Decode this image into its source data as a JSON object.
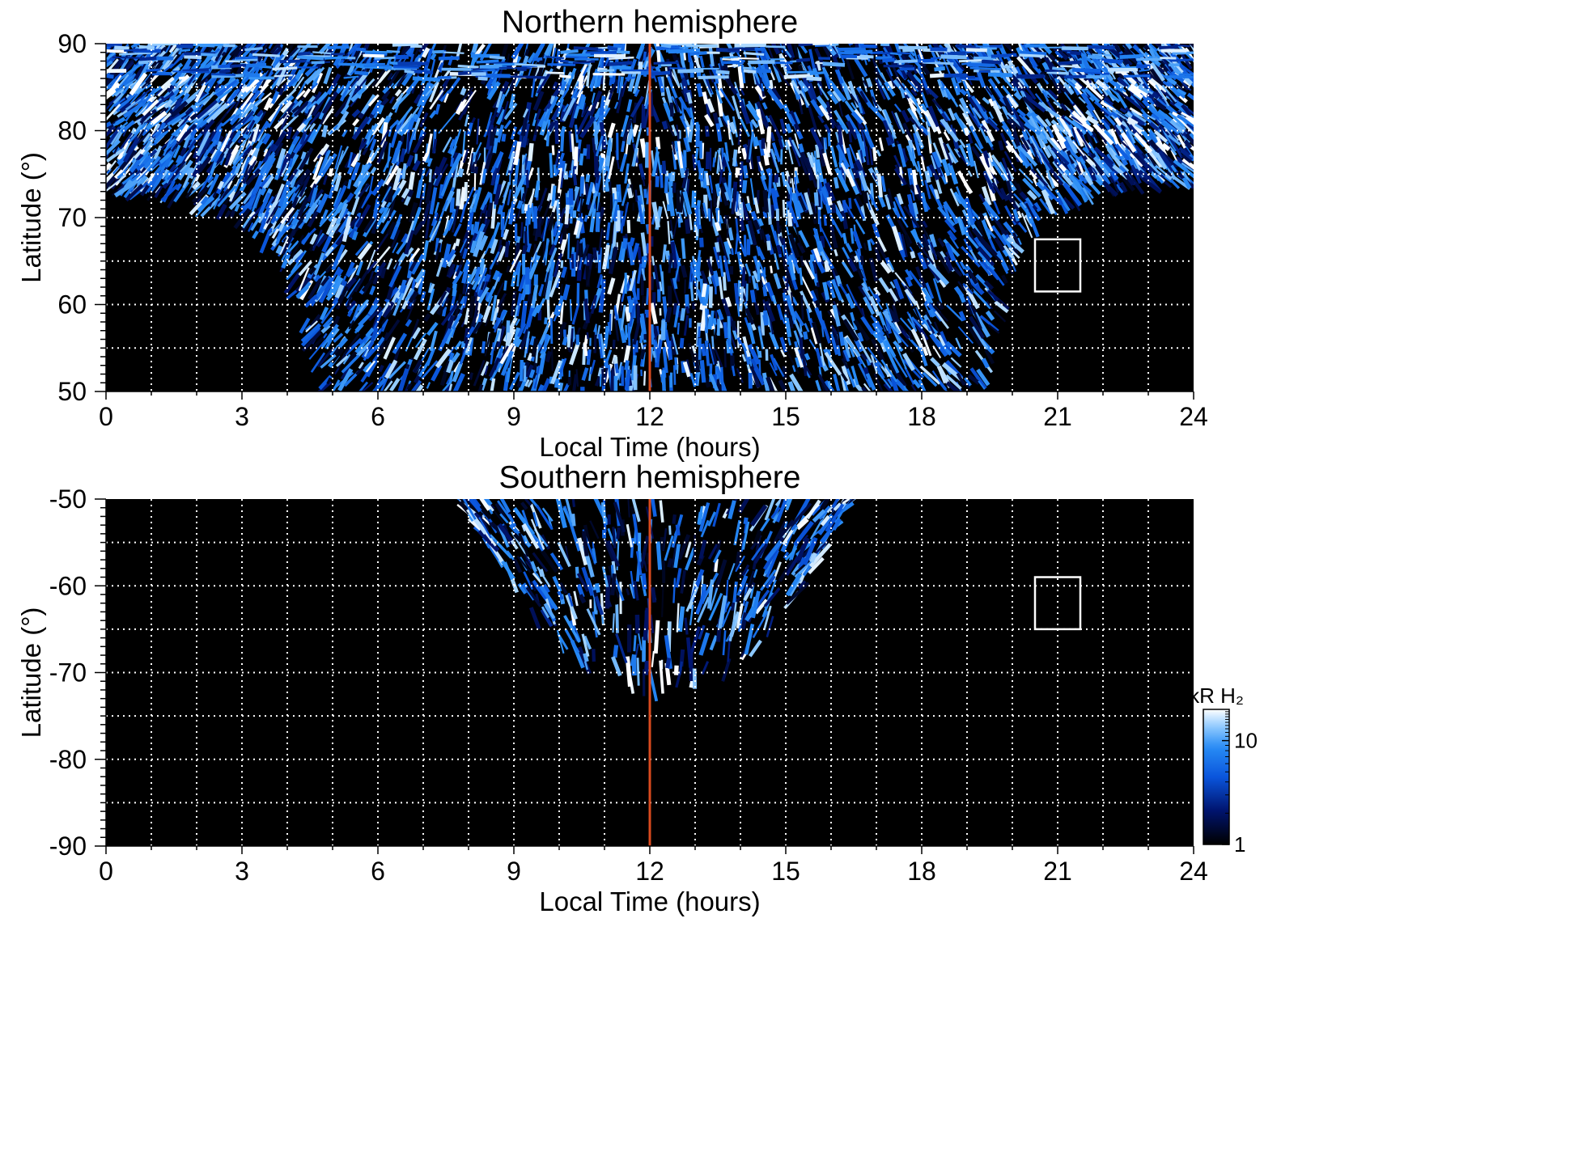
{
  "chart_data": [
    {
      "type": "heatmap",
      "title": "Northern hemisphere",
      "xlabel": "Local Time (hours)",
      "ylabel": "Latitude (°)",
      "xlim": [
        0,
        24
      ],
      "ylim": [
        50,
        90
      ],
      "x_ticks": [
        0,
        3,
        6,
        9,
        12,
        15,
        18,
        21,
        24
      ],
      "y_ticks": [
        50,
        60,
        70,
        80,
        90
      ],
      "grid": true,
      "colormap": "black-blue-white",
      "reference_line": {
        "x": 12,
        "color": "#d94a1e"
      },
      "box": {
        "x": [
          20.5,
          21.5
        ],
        "y": [
          61.5,
          67.5
        ]
      },
      "coverage": {
        "top_band_lat": 85,
        "min_lat_by_time": [
          [
            0,
            73
          ],
          [
            1,
            72.5
          ],
          [
            2,
            71.5
          ],
          [
            3,
            69.5
          ],
          [
            4,
            64.5
          ],
          [
            4.8,
            50
          ],
          [
            19.3,
            50
          ],
          [
            20.2,
            68
          ],
          [
            21,
            71
          ],
          [
            22,
            73
          ],
          [
            24,
            74
          ]
        ]
      }
    },
    {
      "type": "heatmap",
      "title": "Southern hemisphere",
      "xlabel": "Local Time (hours)",
      "ylabel": "Latitude (°)",
      "xlim": [
        0,
        24
      ],
      "ylim": [
        -90,
        -50
      ],
      "x_ticks": [
        0,
        3,
        6,
        9,
        12,
        15,
        18,
        21,
        24
      ],
      "y_ticks": [
        -90,
        -80,
        -70,
        -60,
        -50
      ],
      "grid": true,
      "colormap": "black-blue-white",
      "reference_line": {
        "x": 12,
        "color": "#d94a1e"
      },
      "box": {
        "x": [
          20.5,
          21.5
        ],
        "y": [
          -65,
          -59
        ]
      },
      "coverage": {
        "lat_edge_by_time": [
          [
            7.8,
            -50
          ],
          [
            8.5,
            -56
          ],
          [
            9.5,
            -64
          ],
          [
            10.5,
            -69
          ],
          [
            11.5,
            -71.5
          ],
          [
            12.5,
            -72
          ],
          [
            13.5,
            -70.5
          ],
          [
            14.5,
            -67
          ],
          [
            15.5,
            -60
          ],
          [
            16.4,
            -50
          ]
        ]
      }
    }
  ],
  "colorbar": {
    "label": "kR H₂",
    "scale": "log",
    "range": [
      1,
      20
    ],
    "ticks": [
      {
        "value": 1,
        "label": "1"
      },
      {
        "value": 10,
        "label": "10"
      }
    ]
  }
}
